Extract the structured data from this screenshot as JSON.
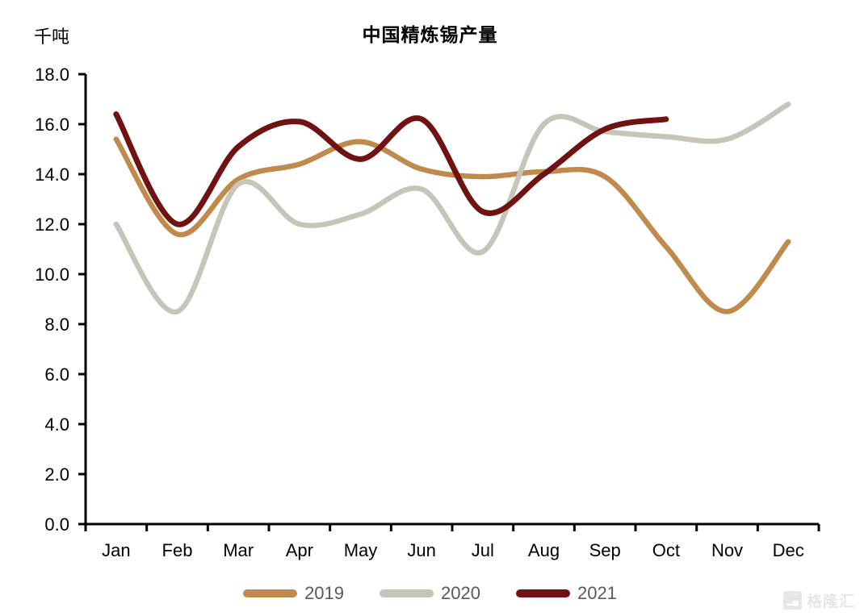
{
  "page": {
    "background": "#FFFFFF"
  },
  "chart_data": {
    "type": "line",
    "title": "中国精炼锡产量",
    "unit_label": "千吨",
    "categories": [
      "Jan",
      "Feb",
      "Mar",
      "Apr",
      "May",
      "Jun",
      "Jul",
      "Aug",
      "Sep",
      "Oct",
      "Nov",
      "Dec"
    ],
    "series": [
      {
        "name": "2019",
        "color": "#C18A4D",
        "line_width": 6.5,
        "values": [
          15.4,
          11.6,
          13.8,
          14.4,
          15.3,
          14.2,
          13.9,
          14.1,
          13.9,
          11.1,
          8.5,
          11.3
        ]
      },
      {
        "name": "2020",
        "color": "#C6C5B7",
        "line_width": 6.5,
        "values": [
          12.0,
          8.5,
          13.6,
          12.0,
          12.4,
          13.4,
          10.9,
          16.0,
          15.7,
          15.5,
          15.4,
          16.8
        ]
      },
      {
        "name": "2021",
        "color": "#701212",
        "line_width": 7,
        "values": [
          16.4,
          12.0,
          15.1,
          16.1,
          14.6,
          16.2,
          12.5,
          14.0,
          15.8,
          16.2
        ]
      }
    ],
    "ylim": [
      0,
      18
    ],
    "ytick_labels": [
      "0.0",
      "2.0",
      "4.0",
      "6.0",
      "8.0",
      "10.0",
      "12.0",
      "14.0",
      "16.0",
      "18.0"
    ],
    "grid": "off",
    "legend_position": "bottom",
    "axis_color": "#000000",
    "smooth": true
  },
  "watermark": {
    "text": "格隆汇"
  },
  "colors": {
    "legend_text": "#595959",
    "watermark": "#E7E7E7"
  }
}
